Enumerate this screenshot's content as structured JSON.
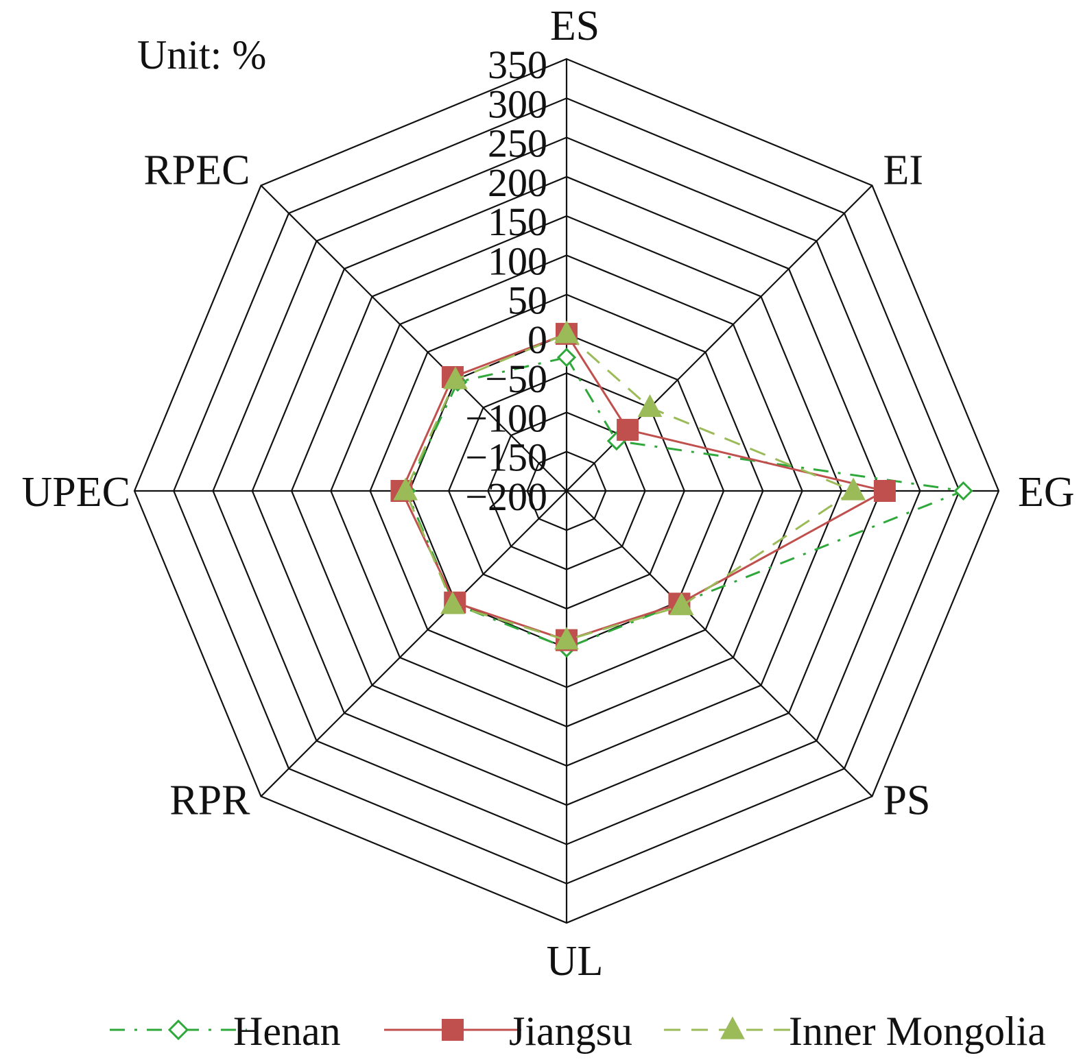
{
  "chart_data": {
    "type": "radar",
    "unit_label": "Unit: %",
    "axes": [
      "ES",
      "EI",
      "EG",
      "PS",
      "UL",
      "RPR",
      "UPEC",
      "RPEC"
    ],
    "r_ticks": [
      -200,
      -150,
      -100,
      -50,
      0,
      50,
      100,
      150,
      200,
      250,
      300,
      350
    ],
    "r_tick_labels": [
      "−200",
      "−150",
      "−100",
      "−50",
      "0",
      "50",
      "100",
      "150",
      "200",
      "250",
      "300",
      "350"
    ],
    "rlim": [
      -200,
      350
    ],
    "grid": true,
    "legend_position": "bottom",
    "series": [
      {
        "name": "Henan",
        "values": [
          -30,
          -110,
          305,
          3,
          0,
          3,
          4,
          -4
        ],
        "color": "#2ea83a",
        "line": "dash-dot",
        "marker": "open-diamond"
      },
      {
        "name": "Jiangsu",
        "values": [
          0,
          -90,
          205,
          3,
          -10,
          1,
          10,
          5
        ],
        "color": "#c0504d",
        "line": "solid",
        "marker": "filled-square"
      },
      {
        "name": "Inner Mongolia",
        "values": [
          0,
          -50,
          165,
          7,
          -10,
          5,
          5,
          0
        ],
        "color": "#9bbb59",
        "line": "dashed",
        "marker": "filled-triangle"
      }
    ]
  }
}
